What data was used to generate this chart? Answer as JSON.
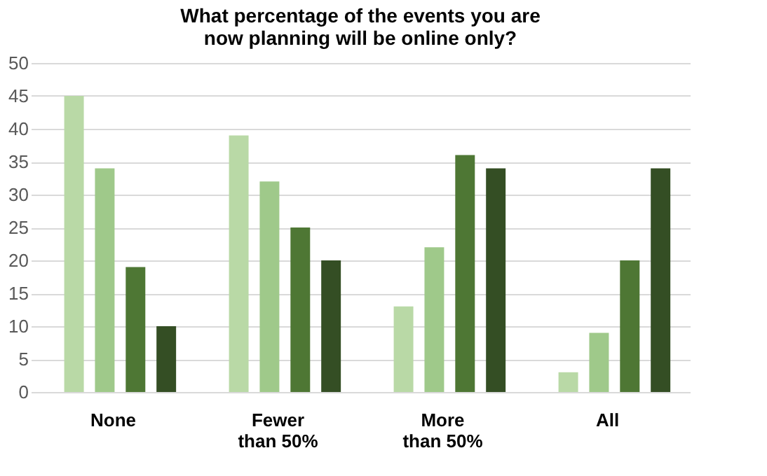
{
  "chart_data": {
    "type": "bar",
    "title": [
      "What percentage of the events you are",
      "now planning will be online only?"
    ],
    "categories": [
      "None",
      "Fewer\nthan 50%",
      "More\nthan 50%",
      "All"
    ],
    "series": [
      {
        "color": "#b9d9a6",
        "values": [
          45,
          39,
          13,
          3
        ]
      },
      {
        "color": "#9fc98a",
        "values": [
          34,
          32,
          22,
          9
        ]
      },
      {
        "color": "#4e7734",
        "values": [
          19,
          25,
          36,
          20
        ]
      },
      {
        "color": "#344e24",
        "values": [
          10,
          20,
          34,
          34
        ]
      }
    ],
    "ylim": [
      0,
      50
    ],
    "yticks": [
      0,
      5,
      10,
      15,
      20,
      25,
      30,
      35,
      40,
      45,
      50
    ],
    "grid": "y",
    "legend": false
  }
}
